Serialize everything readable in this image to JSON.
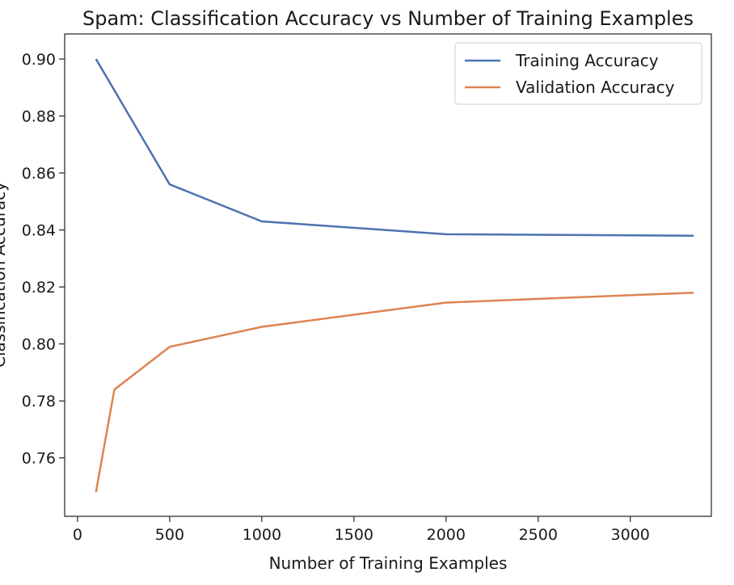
{
  "chart_data": {
    "type": "line",
    "title": "Spam: Classification Accuracy vs Number of Training Examples",
    "xlabel": "Number of Training Examples",
    "ylabel": "Classification Accuracy",
    "xlim": [
      -70,
      3440
    ],
    "ylim": [
      0.7395,
      0.9088
    ],
    "xticks": [
      0,
      500,
      1000,
      1500,
      2000,
      2500,
      3000
    ],
    "xtick_labels": [
      "0",
      "500",
      "1000",
      "1500",
      "2000",
      "2500",
      "3000"
    ],
    "yticks": [
      0.76,
      0.78,
      0.8,
      0.82,
      0.84,
      0.86,
      0.88,
      0.9
    ],
    "ytick_labels": [
      "0.76",
      "0.78",
      "0.80",
      "0.82",
      "0.84",
      "0.86",
      "0.88",
      "0.90"
    ],
    "grid": false,
    "legend_position": "top-right",
    "x": [
      100,
      200,
      500,
      1000,
      2000,
      3344
    ],
    "series": [
      {
        "name": "Training Accuracy",
        "color": "#4c72b0",
        "values": [
          0.9,
          0.889,
          0.856,
          0.843,
          0.8385,
          0.838
        ]
      },
      {
        "name": "Validation Accuracy",
        "color": "#dd8452",
        "values": [
          0.748,
          0.784,
          0.799,
          0.806,
          0.8145,
          0.818
        ]
      }
    ]
  }
}
